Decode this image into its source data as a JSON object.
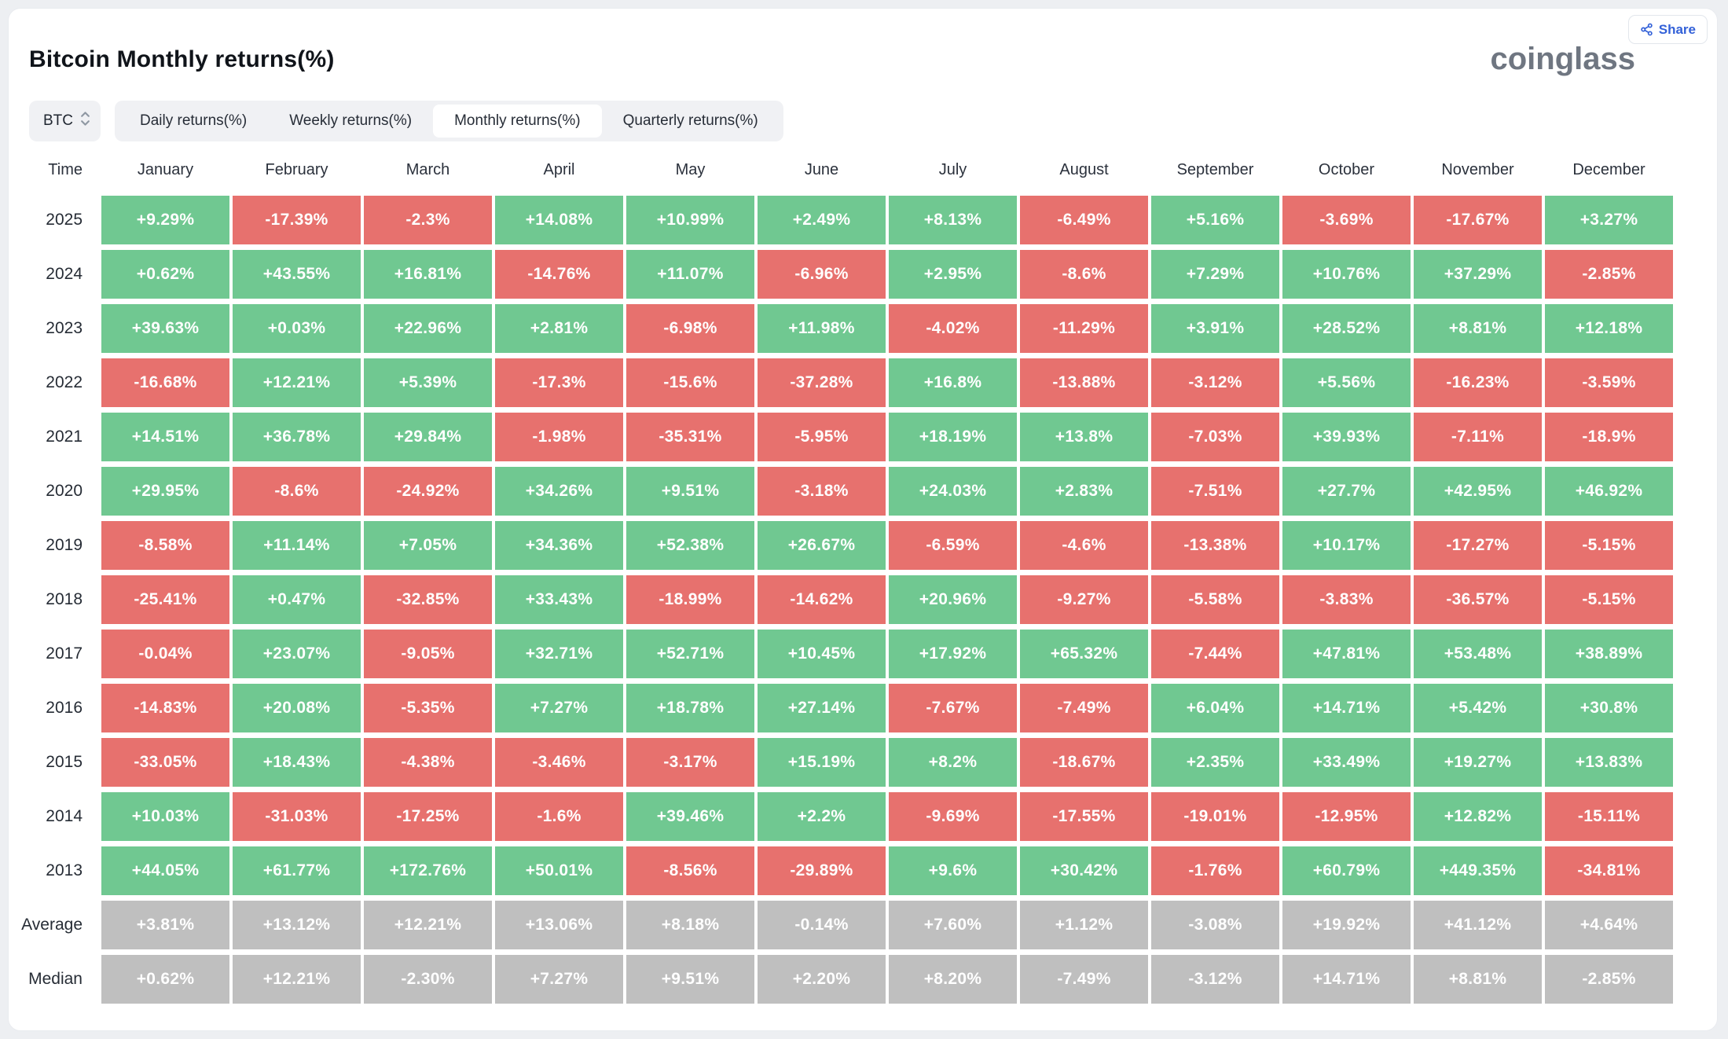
{
  "page": {
    "title": "Bitcoin Monthly returns(%)",
    "brand": "coinglass"
  },
  "share": {
    "label": "Share"
  },
  "controls": {
    "coin": "BTC",
    "tabs": [
      {
        "label": "Daily returns(%)",
        "active": false
      },
      {
        "label": "Weekly returns(%)",
        "active": false
      },
      {
        "label": "Monthly returns(%)",
        "active": true
      },
      {
        "label": "Quarterly returns(%)",
        "active": false
      }
    ]
  },
  "colors": {
    "positive": "#70c891",
    "negative": "#e7716e",
    "summary": "#bfbfbf",
    "accent": "#3361d8"
  },
  "chart_data": {
    "type": "heatmap",
    "title": "Bitcoin Monthly returns(%)",
    "columns": [
      "Time",
      "January",
      "February",
      "March",
      "April",
      "May",
      "June",
      "July",
      "August",
      "September",
      "October",
      "November",
      "December"
    ],
    "rows": [
      {
        "label": "2025",
        "summary": false,
        "values": [
          "+9.29%",
          "-17.39%",
          "-2.3%",
          "+14.08%",
          "+10.99%",
          "+2.49%",
          "+8.13%",
          "-6.49%",
          "+5.16%",
          "-3.69%",
          "-17.67%",
          "+3.27%"
        ]
      },
      {
        "label": "2024",
        "summary": false,
        "values": [
          "+0.62%",
          "+43.55%",
          "+16.81%",
          "-14.76%",
          "+11.07%",
          "-6.96%",
          "+2.95%",
          "-8.6%",
          "+7.29%",
          "+10.76%",
          "+37.29%",
          "-2.85%"
        ]
      },
      {
        "label": "2023",
        "summary": false,
        "values": [
          "+39.63%",
          "+0.03%",
          "+22.96%",
          "+2.81%",
          "-6.98%",
          "+11.98%",
          "-4.02%",
          "-11.29%",
          "+3.91%",
          "+28.52%",
          "+8.81%",
          "+12.18%"
        ]
      },
      {
        "label": "2022",
        "summary": false,
        "values": [
          "-16.68%",
          "+12.21%",
          "+5.39%",
          "-17.3%",
          "-15.6%",
          "-37.28%",
          "+16.8%",
          "-13.88%",
          "-3.12%",
          "+5.56%",
          "-16.23%",
          "-3.59%"
        ]
      },
      {
        "label": "2021",
        "summary": false,
        "values": [
          "+14.51%",
          "+36.78%",
          "+29.84%",
          "-1.98%",
          "-35.31%",
          "-5.95%",
          "+18.19%",
          "+13.8%",
          "-7.03%",
          "+39.93%",
          "-7.11%",
          "-18.9%"
        ]
      },
      {
        "label": "2020",
        "summary": false,
        "values": [
          "+29.95%",
          "-8.6%",
          "-24.92%",
          "+34.26%",
          "+9.51%",
          "-3.18%",
          "+24.03%",
          "+2.83%",
          "-7.51%",
          "+27.7%",
          "+42.95%",
          "+46.92%"
        ]
      },
      {
        "label": "2019",
        "summary": false,
        "values": [
          "-8.58%",
          "+11.14%",
          "+7.05%",
          "+34.36%",
          "+52.38%",
          "+26.67%",
          "-6.59%",
          "-4.6%",
          "-13.38%",
          "+10.17%",
          "-17.27%",
          "-5.15%"
        ]
      },
      {
        "label": "2018",
        "summary": false,
        "values": [
          "-25.41%",
          "+0.47%",
          "-32.85%",
          "+33.43%",
          "-18.99%",
          "-14.62%",
          "+20.96%",
          "-9.27%",
          "-5.58%",
          "-3.83%",
          "-36.57%",
          "-5.15%"
        ]
      },
      {
        "label": "2017",
        "summary": false,
        "values": [
          "-0.04%",
          "+23.07%",
          "-9.05%",
          "+32.71%",
          "+52.71%",
          "+10.45%",
          "+17.92%",
          "+65.32%",
          "-7.44%",
          "+47.81%",
          "+53.48%",
          "+38.89%"
        ]
      },
      {
        "label": "2016",
        "summary": false,
        "values": [
          "-14.83%",
          "+20.08%",
          "-5.35%",
          "+7.27%",
          "+18.78%",
          "+27.14%",
          "-7.67%",
          "-7.49%",
          "+6.04%",
          "+14.71%",
          "+5.42%",
          "+30.8%"
        ]
      },
      {
        "label": "2015",
        "summary": false,
        "values": [
          "-33.05%",
          "+18.43%",
          "-4.38%",
          "-3.46%",
          "-3.17%",
          "+15.19%",
          "+8.2%",
          "-18.67%",
          "+2.35%",
          "+33.49%",
          "+19.27%",
          "+13.83%"
        ]
      },
      {
        "label": "2014",
        "summary": false,
        "values": [
          "+10.03%",
          "-31.03%",
          "-17.25%",
          "-1.6%",
          "+39.46%",
          "+2.2%",
          "-9.69%",
          "-17.55%",
          "-19.01%",
          "-12.95%",
          "+12.82%",
          "-15.11%"
        ]
      },
      {
        "label": "2013",
        "summary": false,
        "values": [
          "+44.05%",
          "+61.77%",
          "+172.76%",
          "+50.01%",
          "-8.56%",
          "-29.89%",
          "+9.6%",
          "+30.42%",
          "-1.76%",
          "+60.79%",
          "+449.35%",
          "-34.81%"
        ]
      },
      {
        "label": "Average",
        "summary": true,
        "values": [
          "+3.81%",
          "+13.12%",
          "+12.21%",
          "+13.06%",
          "+8.18%",
          "-0.14%",
          "+7.60%",
          "+1.12%",
          "-3.08%",
          "+19.92%",
          "+41.12%",
          "+4.64%"
        ]
      },
      {
        "label": "Median",
        "summary": true,
        "values": [
          "+0.62%",
          "+12.21%",
          "-2.30%",
          "+7.27%",
          "+9.51%",
          "+2.20%",
          "+8.20%",
          "-7.49%",
          "-3.12%",
          "+14.71%",
          "+8.81%",
          "-2.85%"
        ]
      }
    ]
  }
}
